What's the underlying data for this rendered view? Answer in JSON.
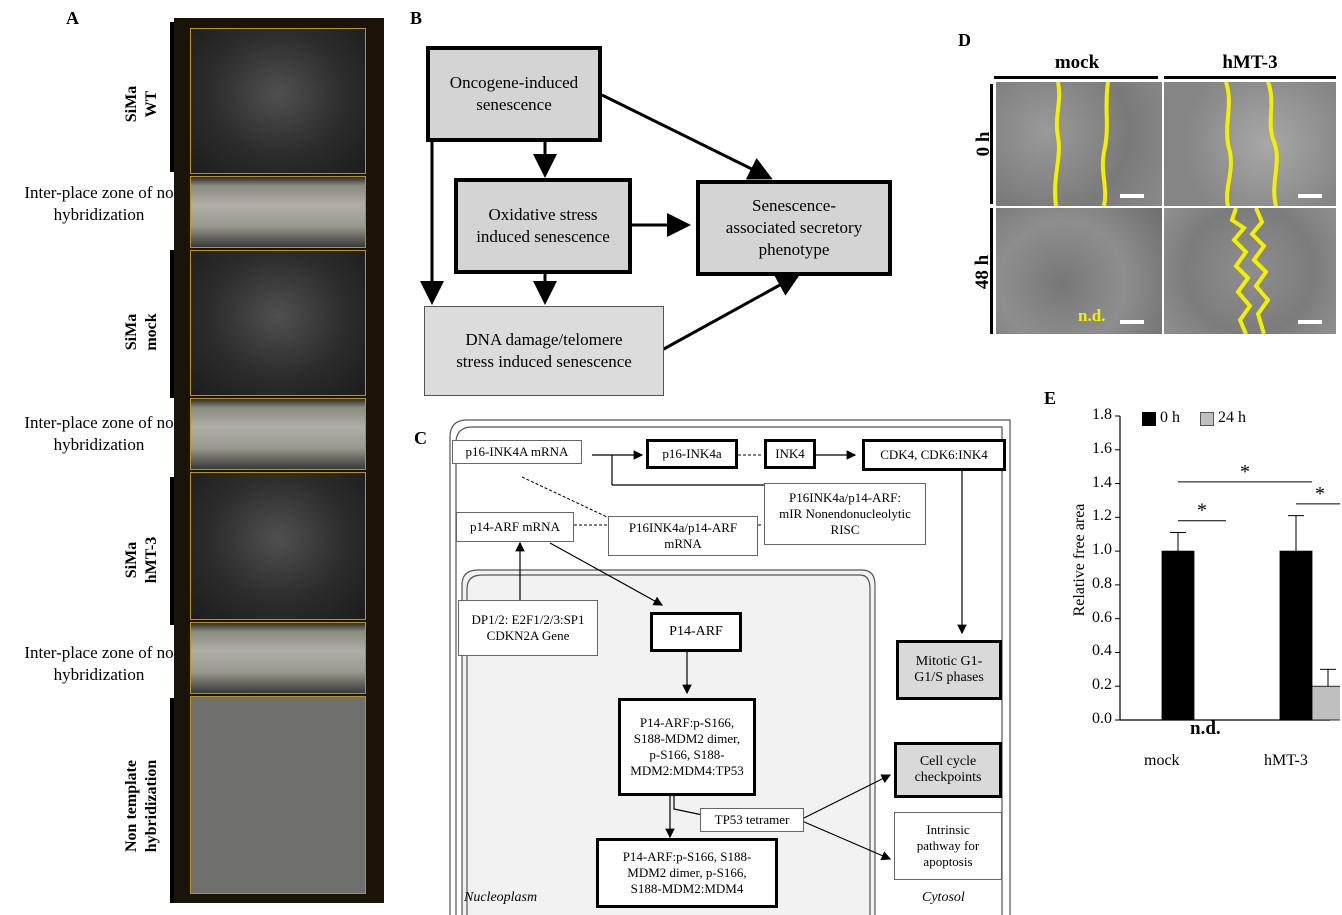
{
  "panelA": {
    "label": "A",
    "groups": [
      "SiMa\nWT",
      "SiMa\nmock",
      "SiMa\nhMT-3",
      "Non template\nhybridization"
    ],
    "zones": [
      "Inter-place zone of no\nhybridization",
      "Inter-place zone of no\nhybridization",
      "Inter-place zone of no\nhybridization"
    ]
  },
  "panelB": {
    "label": "B",
    "oncogene": "Oncogene-induced\nsenescence",
    "oxidative": "Oxidative stress\ninduced senescence",
    "sasp": "Senescence-\nassociated secretory\nphenotype",
    "dna": "DNA damage/telomere\nstress induced senescence"
  },
  "panelC": {
    "label": "C",
    "p16mrna": "p16-INK4A mRNA",
    "p16": "p16-INK4a",
    "ink4": "INK4",
    "cdk": "CDK4, CDK6:INK4",
    "mirisc": "P16INK4a/p14-ARF:\nmIR Nonendonucleolytic\nRISC",
    "p14mrna": "p14-ARF mRNA",
    "p16p14mrna": "P16INK4a/p14-ARF\nmRNA",
    "dp12": "DP1/2: E2F1/2/3:SP1\nCDKN2A Gene",
    "p14arf": "P14-ARF",
    "mitotic": "Mitotic G1-\nG1/S phases",
    "complex1": "P14-ARF:p-S166,\nS188-MDM2 dimer,\np-S166, S188-\nMDM2:MDM4:TP53",
    "tp53": "TP53 tetramer",
    "checkpoints": "Cell cycle\ncheckpoints",
    "intrinsic": "Intrinsic\npathway for\napoptosis",
    "complex2": "P14-ARF:p-S166, S188-\nMDM2 dimer, p-S166,\nS188-MDM2:MDM4",
    "nucleoplasm": "Nucleoplasm",
    "cytosol": "Cytosol"
  },
  "panelD": {
    "label": "D",
    "col_mock": "mock",
    "col_hmt3": "hMT-3",
    "row_0h": "0 h",
    "row_48h": "48 h",
    "nd": "n.d."
  },
  "panelE": {
    "label": "E",
    "nd": "n.d.",
    "star": "*"
  },
  "chart_data": {
    "type": "bar",
    "categories": [
      "mock",
      "hMT-3"
    ],
    "series": [
      {
        "name": "0 h",
        "values": [
          1.0,
          1.0
        ],
        "errors": [
          0.11,
          0.21
        ],
        "color": "#000000"
      },
      {
        "name": "24 h",
        "values": [
          0.0,
          0.2
        ],
        "errors": [
          0.0,
          0.1
        ],
        "color": "#bfbfbf"
      }
    ],
    "ylabel": "Relative free area",
    "ylim": [
      0,
      1.8
    ],
    "yticks": [
      "0.0",
      "0.2",
      "0.4",
      "0.6",
      "0.8",
      "1.0",
      "1.2",
      "1.4",
      "1.6",
      "1.8"
    ],
    "legend": "top-left",
    "annotations": [
      "*",
      "*",
      "*",
      "n.d."
    ]
  }
}
